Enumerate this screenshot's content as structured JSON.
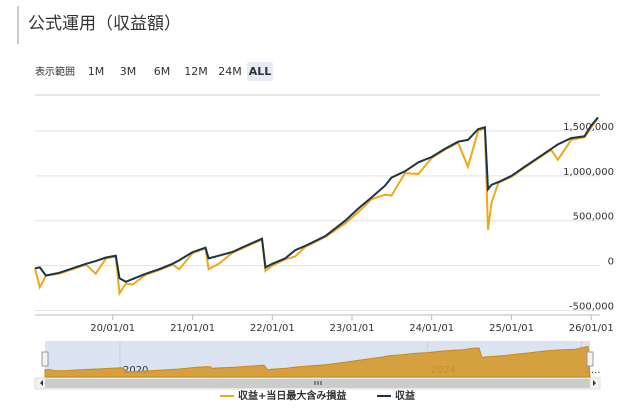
{
  "chart_data": {
    "type": "line",
    "title": "公式運用（収益額）",
    "range_selector": {
      "label": "表示範囲",
      "buttons": [
        "1M",
        "3M",
        "6M",
        "12M",
        "24M",
        "ALL"
      ],
      "selected": "ALL"
    },
    "x": [
      "2019-01-10",
      "2019-02-01",
      "2019-03-01",
      "2019-05-01",
      "2019-07-01",
      "2019-09-01",
      "2019-10-15",
      "2019-12-01",
      "2020-01-15",
      "2020-02-01",
      "2020-03-01",
      "2020-04-01",
      "2020-06-01",
      "2020-08-01",
      "2020-10-01",
      "2020-11-01",
      "2021-01-01",
      "2021-03-01",
      "2021-03-15",
      "2021-05-01",
      "2021-07-01",
      "2021-09-01",
      "2021-11-15",
      "2021-12-01",
      "2022-01-01",
      "2022-03-01",
      "2022-04-15",
      "2022-06-01",
      "2022-09-01",
      "2022-12-01",
      "2023-02-01",
      "2023-04-01",
      "2023-06-01",
      "2023-07-01",
      "2023-09-01",
      "2023-11-01",
      "2024-01-01",
      "2024-03-01",
      "2024-05-01",
      "2024-06-15",
      "2024-08-01",
      "2024-09-01",
      "2024-09-15",
      "2024-10-01",
      "2024-11-01",
      "2025-01-01",
      "2025-03-01",
      "2025-05-01",
      "2025-07-01",
      "2025-08-01",
      "2025-10-01",
      "2025-12-01",
      "2026-01-01",
      "2026-02-01"
    ],
    "series": [
      {
        "name": "収益+当日最大含み損益",
        "color": "#f0a818",
        "values": [
          -30000,
          -240000,
          -110000,
          -90000,
          -40000,
          10000,
          -90000,
          80000,
          100000,
          -310000,
          -200000,
          -210000,
          -100000,
          -50000,
          10000,
          -40000,
          140000,
          190000,
          -40000,
          20000,
          140000,
          210000,
          290000,
          -60000,
          0,
          70000,
          100000,
          210000,
          320000,
          470000,
          600000,
          740000,
          790000,
          780000,
          1030000,
          1020000,
          1200000,
          1290000,
          1370000,
          1100000,
          1500000,
          1530000,
          400000,
          700000,
          920000,
          990000,
          1090000,
          1190000,
          1290000,
          1180000,
          1400000,
          1430000,
          1540000,
          1640000
        ]
      },
      {
        "name": "収益",
        "color": "#1d3448",
        "values": [
          -30000,
          -20000,
          -110000,
          -80000,
          -30000,
          20000,
          50000,
          90000,
          110000,
          -140000,
          -180000,
          -150000,
          -90000,
          -40000,
          20000,
          60000,
          150000,
          200000,
          80000,
          110000,
          150000,
          220000,
          300000,
          -20000,
          20000,
          80000,
          170000,
          220000,
          330000,
          500000,
          640000,
          760000,
          890000,
          980000,
          1050000,
          1150000,
          1210000,
          1300000,
          1380000,
          1400000,
          1520000,
          1540000,
          850000,
          900000,
          930000,
          1000000,
          1100000,
          1200000,
          1300000,
          1350000,
          1420000,
          1440000,
          1560000,
          1650000
        ]
      }
    ],
    "xlim": [
      "2019-01-10",
      "2026-02-10"
    ],
    "xticks": [
      {
        "value": "2020-01-01",
        "label": "20/01/01"
      },
      {
        "value": "2021-01-01",
        "label": "21/01/01"
      },
      {
        "value": "2022-01-01",
        "label": "22/01/01"
      },
      {
        "value": "2023-01-01",
        "label": "23/01/01"
      },
      {
        "value": "2024-01-01",
        "label": "24/01/01"
      },
      {
        "value": "2025-01-01",
        "label": "25/01/01"
      },
      {
        "value": "2026-01-01",
        "label": "26/01/01"
      }
    ],
    "ylim": [
      -550000,
      1900000
    ],
    "yticks": [
      {
        "value": -500000,
        "label": "-500,000"
      },
      0,
      {
        "value": 500000,
        "label": "500,000"
      },
      {
        "value": 1000000,
        "label": "1,000,000"
      },
      {
        "value": 1500000,
        "label": "1,500,000"
      }
    ],
    "grid": true,
    "navigator": {
      "xticks": [
        {
          "value": "2020-01-01",
          "label": "2020"
        },
        {
          "value": "2024-01-01",
          "label": "2024"
        },
        {
          "value": "2026-01-01",
          "label": "2..."
        }
      ]
    }
  }
}
